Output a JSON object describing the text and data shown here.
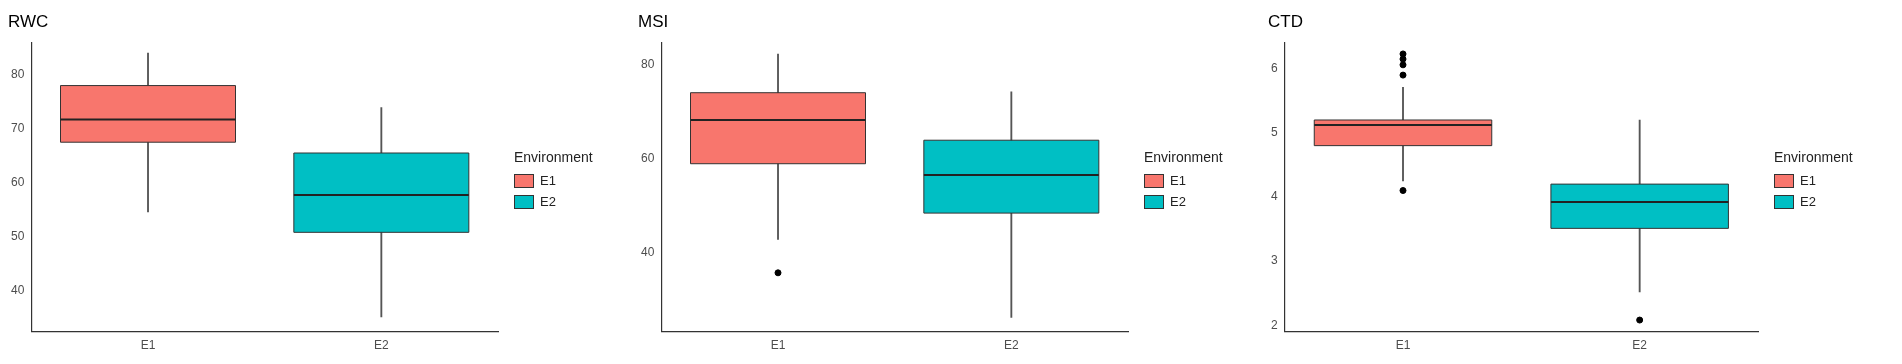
{
  "chart_data": [
    {
      "type": "box",
      "title": "RWC",
      "categories": [
        "E1",
        "E2"
      ],
      "legend": "right",
      "legend_title": "Environment",
      "grid": false,
      "ylim": [
        32.4,
        86
      ],
      "yticks": [
        40,
        50,
        60,
        70,
        80
      ],
      "series": [
        {
          "name": "E1",
          "color": "#f8766d",
          "boxes": [
            {
              "low": 54.6,
              "q1": 67.5,
              "median": 71.7,
              "q3": 78,
              "high": 84
            },
            null
          ]
        },
        {
          "name": "E2",
          "color": "#00bfc4",
          "boxes": [
            null,
            {
              "low": 35.1,
              "q1": 50.8,
              "median": 57.7,
              "q3": 65.5,
              "high": 73.9
            }
          ]
        }
      ]
    },
    {
      "type": "box",
      "title": "MSI",
      "categories": [
        "E1",
        "E2"
      ],
      "legend": "right",
      "legend_title": "Environment",
      "grid": false,
      "ylim": [
        23.2,
        84.7
      ],
      "yticks": [
        40,
        60,
        80
      ],
      "series": [
        {
          "name": "E1",
          "color": "#f8766d",
          "boxes": [
            {
              "low": 42.8,
              "q1": 58.9,
              "median": 68.2,
              "q3": 74,
              "high": 82.2,
              "outliers": [
                35.7
              ]
            },
            null
          ]
        },
        {
          "name": "E2",
          "color": "#00bfc4",
          "boxes": [
            null,
            {
              "low": 26.2,
              "q1": 48.4,
              "median": 56.5,
              "q3": 63.9,
              "high": 74.2
            }
          ]
        }
      ]
    },
    {
      "type": "box",
      "title": "CTD",
      "categories": [
        "E1",
        "E2"
      ],
      "legend": "right",
      "legend_title": "Environment",
      "grid": false,
      "ylim": [
        1.9,
        6.41
      ],
      "yticks": [
        2,
        3,
        4,
        5,
        6
      ],
      "series": [
        {
          "name": "E1",
          "color": "#f8766d",
          "boxes": [
            {
              "low": 4.25,
              "q1": 4.8,
              "median": 5.12,
              "q3": 5.2,
              "high": 5.71,
              "outliers": [
                6.23,
                6.15,
                6.06,
                5.9,
                4.1
              ]
            },
            null
          ]
        },
        {
          "name": "E2",
          "color": "#00bfc4",
          "boxes": [
            null,
            {
              "low": 2.52,
              "q1": 3.51,
              "median": 3.92,
              "q3": 4.2,
              "high": 5.2,
              "outliers": [
                2.08
              ]
            }
          ]
        }
      ]
    }
  ]
}
